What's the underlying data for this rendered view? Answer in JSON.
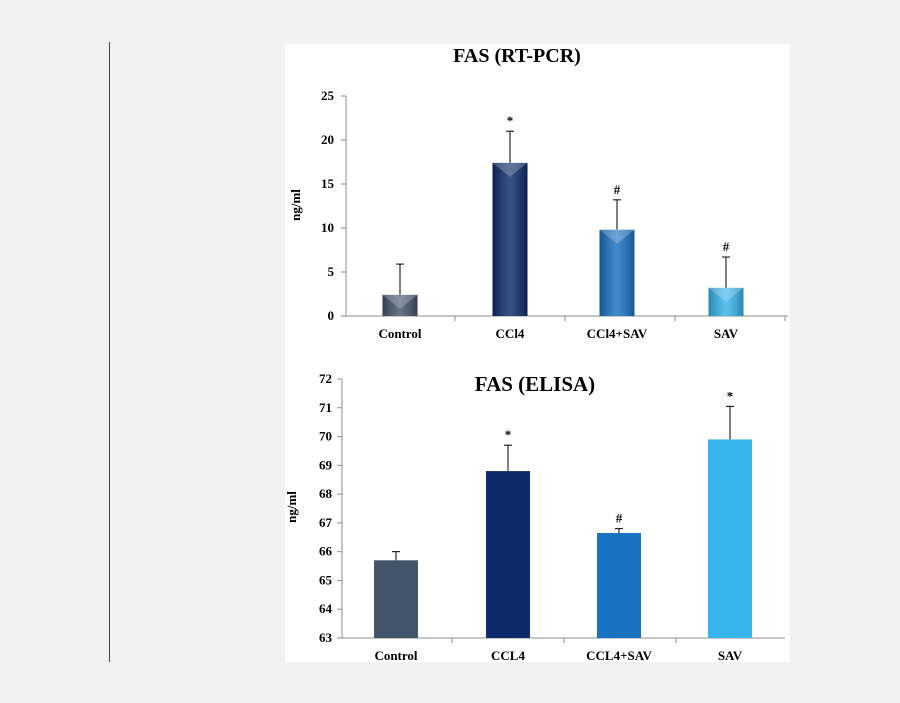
{
  "colors": {
    "page_background": "#f2f2f2",
    "panel_background": "#ffffff",
    "series": [
      "#44546a",
      "#0d2a6b",
      "#1a72c2",
      "#36b4ec"
    ]
  },
  "chart_data": [
    {
      "type": "bar",
      "title": "FAS (RT-PCR)",
      "xlabel": "",
      "ylabel": "ng/ml",
      "ylim": [
        0,
        25
      ],
      "yticks": [
        0,
        5,
        10,
        15,
        20,
        25
      ],
      "ytick_labels": [
        "0",
        "5",
        "10",
        "15",
        "20",
        "25"
      ],
      "categories": [
        "Control",
        "CCl4",
        "CCl4+SAV",
        "SAV"
      ],
      "values": [
        2.4,
        17.4,
        9.8,
        3.2
      ],
      "errors": [
        3.5,
        3.6,
        3.4,
        3.5
      ],
      "annotations": [
        "",
        "*",
        "#",
        "#"
      ],
      "bar_style": "3d",
      "grid": false
    },
    {
      "type": "bar",
      "title": "FAS (ELISA)",
      "xlabel": "",
      "ylabel": "ng/ml",
      "ylim": [
        63,
        72
      ],
      "yticks": [
        63,
        64,
        65,
        66,
        67,
        68,
        69,
        70,
        71,
        72
      ],
      "ytick_labels": [
        "63",
        "64",
        "65",
        "66",
        "67",
        "68",
        "69",
        "70",
        "71",
        "72"
      ],
      "categories": [
        "Control",
        "CCL4",
        "CCL4+SAV",
        "SAV"
      ],
      "values": [
        65.7,
        68.8,
        66.65,
        69.9
      ],
      "errors": [
        0.3,
        0.9,
        0.15,
        1.15
      ],
      "annotations": [
        "",
        "*",
        "#",
        "*"
      ],
      "bar_style": "flat",
      "grid": false
    }
  ]
}
